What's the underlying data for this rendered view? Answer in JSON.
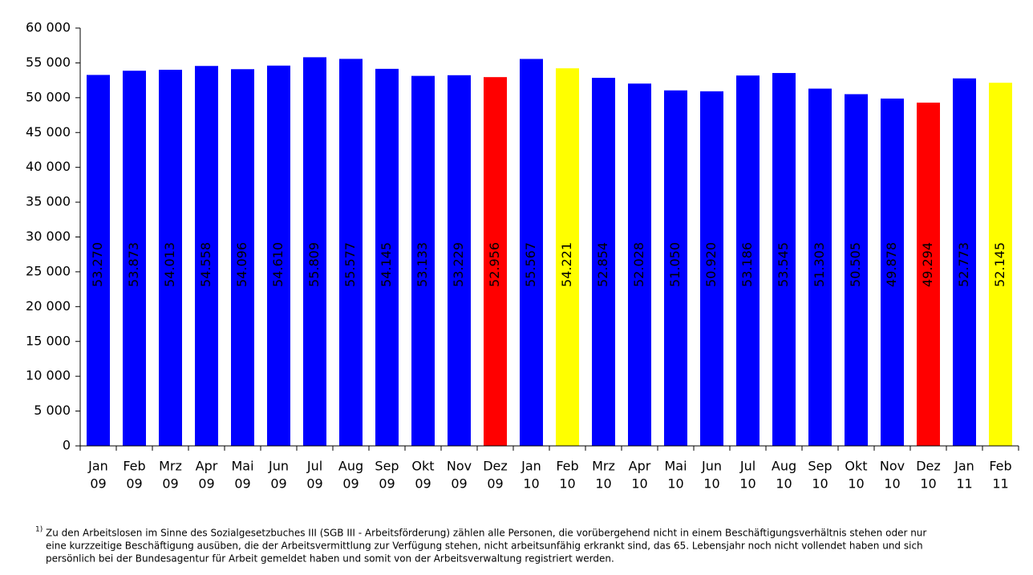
{
  "chart_data": {
    "type": "bar",
    "categories": [
      [
        "Jan",
        "09"
      ],
      [
        "Feb",
        "09"
      ],
      [
        "Mrz",
        "09"
      ],
      [
        "Apr",
        "09"
      ],
      [
        "Mai",
        "09"
      ],
      [
        "Jun",
        "09"
      ],
      [
        "Jul",
        "09"
      ],
      [
        "Aug",
        "09"
      ],
      [
        "Sep",
        "09"
      ],
      [
        "Okt",
        "09"
      ],
      [
        "Nov",
        "09"
      ],
      [
        "Dez",
        "09"
      ],
      [
        "Jan",
        "10"
      ],
      [
        "Feb",
        "10"
      ],
      [
        "Mrz",
        "10"
      ],
      [
        "Apr",
        "10"
      ],
      [
        "Mai",
        "10"
      ],
      [
        "Jun",
        "10"
      ],
      [
        "Jul",
        "10"
      ],
      [
        "Aug",
        "10"
      ],
      [
        "Sep",
        "10"
      ],
      [
        "Okt",
        "10"
      ],
      [
        "Nov",
        "10"
      ],
      [
        "Dez",
        "10"
      ],
      [
        "Jan",
        "11"
      ],
      [
        "Feb",
        "11"
      ]
    ],
    "values": [
      53270,
      53873,
      54013,
      54558,
      54096,
      54610,
      55809,
      55577,
      54145,
      53133,
      53229,
      52956,
      55567,
      54221,
      52854,
      52028,
      51050,
      50920,
      53186,
      53545,
      51303,
      50505,
      49878,
      49294,
      52773,
      52145
    ],
    "value_labels": [
      "53.270",
      "53.873",
      "54.013",
      "54.558",
      "54.096",
      "54.610",
      "55.809",
      "55.577",
      "54.145",
      "53.133",
      "53.229",
      "52.956",
      "55.567",
      "54.221",
      "52.854",
      "52.028",
      "51.050",
      "50.920",
      "53.186",
      "53.545",
      "51.303",
      "50.505",
      "49.878",
      "49.294",
      "52.773",
      "52.145"
    ],
    "colors": [
      "#0000ff",
      "#0000ff",
      "#0000ff",
      "#0000ff",
      "#0000ff",
      "#0000ff",
      "#0000ff",
      "#0000ff",
      "#0000ff",
      "#0000ff",
      "#0000ff",
      "#ff0000",
      "#0000ff",
      "#ffff00",
      "#0000ff",
      "#0000ff",
      "#0000ff",
      "#0000ff",
      "#0000ff",
      "#0000ff",
      "#0000ff",
      "#0000ff",
      "#0000ff",
      "#ff0000",
      "#0000ff",
      "#ffff00"
    ],
    "ylim": [
      0,
      60000
    ],
    "yticks": [
      0,
      {
        "value": 5000,
        "label": "5 000"
      },
      {
        "value": 10000,
        "label": "10 000"
      },
      {
        "value": 15000,
        "label": "15 000"
      },
      {
        "value": 20000,
        "label": "20 000"
      },
      {
        "value": 25000,
        "label": "25 000"
      },
      {
        "value": 30000,
        "label": "30 000"
      },
      {
        "value": 35000,
        "label": "35 000"
      },
      {
        "value": 40000,
        "label": "40 000"
      },
      {
        "value": 45000,
        "label": "45 000"
      },
      {
        "value": 50000,
        "label": "50 000"
      },
      {
        "value": 55000,
        "label": "55 000"
      },
      {
        "value": 60000,
        "label": "60 000"
      }
    ],
    "grid": false,
    "footnote": {
      "marker": "1)",
      "lines": [
        "Zu den Arbeitslosen im Sinne des Sozialgesetzbuches III (SGB III - Arbeitsförderung) zählen alle Personen, die vorübergehend nicht in einem Beschäftigungsverhältnis stehen oder nur",
        "eine kurzzeitige Beschäftigung ausüben, die der Arbeitsvermittlung zur Verfügung stehen, nicht arbeitsunfähig erkrankt sind, das 65. Lebensjahr noch nicht vollendet haben und sich",
        "persönlich bei der Bundesagentur für Arbeit gemeldet haben und somit von der Arbeitsverwaltung registriert werden."
      ]
    }
  }
}
